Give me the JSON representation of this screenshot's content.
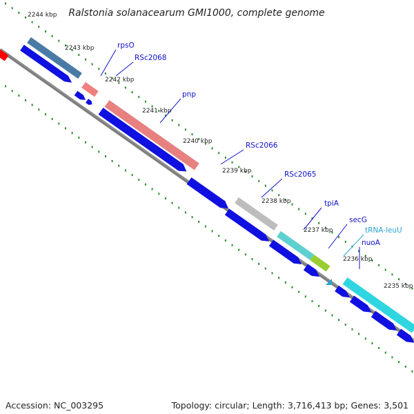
{
  "title": "Ralstonia solanacearum GMI1000, complete genome",
  "footer": {
    "accession": "Accession: NC_003295",
    "topology": "Topology: circular; Length: 3,716,413 bp; Genes: 3,501"
  },
  "colors": {
    "background": "#ffffff",
    "backbone": "#8c8c8c",
    "forward_cds": "#1010e0",
    "reverse_cds": "#1010e0",
    "tick": "#2d8a2d",
    "label_line": "#1010cc",
    "trna": "#29a3d6",
    "rps": "#4a7ba6",
    "rsc2068": "#f08080",
    "pnp": "#e88080",
    "rsc2066": "#bdbdbd",
    "tpiA_track": "#5fd0d0",
    "secG": "#9acd32",
    "nuoA": "#2fd6e0",
    "left_red": "#ff0000"
  },
  "kbp_ticks": [
    "2244 kbp",
    "2243 kbp",
    "2242 kbp",
    "2241 kbp",
    "2240 kbp",
    "2239 kbp",
    "2238 kbp",
    "2237 kbp",
    "2236 kbp",
    "2235 kbp"
  ],
  "gene_labels": [
    {
      "name": "rpsO",
      "color": "#1010cc"
    },
    {
      "name": "RSc2068",
      "color": "#1010cc"
    },
    {
      "name": "pnp",
      "color": "#1010cc"
    },
    {
      "name": "RSc2066",
      "color": "#1010cc"
    },
    {
      "name": "RSc2065",
      "color": "#1010cc"
    },
    {
      "name": "tpiA",
      "color": "#1010cc"
    },
    {
      "name": "secG",
      "color": "#1010cc"
    },
    {
      "name": "tRNA-leuU",
      "color": "#29a3d6"
    },
    {
      "name": "nuoA",
      "color": "#1010cc"
    }
  ]
}
